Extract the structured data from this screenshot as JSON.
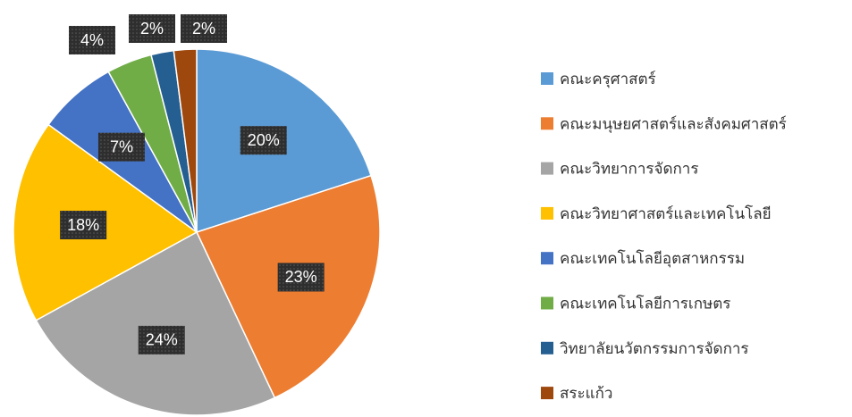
{
  "chart_data": {
    "type": "pie",
    "categories": [
      "คณะครุศาสตร์",
      "คณะมนุษยศาสตร์และสังคมศาสตร์",
      "คณะวิทยาการจัดการ",
      "คณะวิทยาศาสตร์และเทคโนโลยี",
      "คณะเทคโนโลยีอุตสาหกรรม",
      "คณะเทคโนโลยีการเกษตร",
      "วิทยาลัยนวัตกรรมการจัดการ",
      "สระแก้ว"
    ],
    "values": [
      20,
      23,
      24,
      18,
      7,
      4,
      2,
      2
    ],
    "value_labels": [
      "20%",
      "23%",
      "24%",
      "18%",
      "7%",
      "4%",
      "2%",
      "2%"
    ],
    "colors": [
      "#5b9bd5",
      "#ed7d31",
      "#a5a5a5",
      "#ffc000",
      "#4472c4",
      "#70ad47",
      "#255e91",
      "#9e480e"
    ],
    "legend": "right"
  }
}
